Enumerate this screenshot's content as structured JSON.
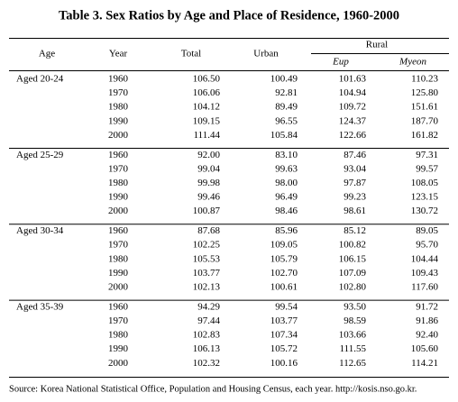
{
  "title": "Table 3. Sex Ratios by Age and Place of Residence, 1960-2000",
  "header": {
    "age": "Age",
    "year": "Year",
    "total": "Total",
    "urban": "Urban",
    "rural": "Rural",
    "eup": "Eup",
    "myeon": "Myeon"
  },
  "table": {
    "groups": [
      {
        "label": "Aged 20-24",
        "rows": [
          [
            "1960",
            "106.50",
            "100.49",
            "101.63",
            "110.23"
          ],
          [
            "1970",
            "106.06",
            "92.81",
            "104.94",
            "125.80"
          ],
          [
            "1980",
            "104.12",
            "89.49",
            "109.72",
            "151.61"
          ],
          [
            "1990",
            "109.15",
            "96.55",
            "124.37",
            "187.70"
          ],
          [
            "2000",
            "111.44",
            "105.84",
            "122.66",
            "161.82"
          ]
        ]
      },
      {
        "label": "Aged 25-29",
        "rows": [
          [
            "1960",
            "92.00",
            "83.10",
            "87.46",
            "97.31"
          ],
          [
            "1970",
            "99.04",
            "99.63",
            "93.04",
            "99.57"
          ],
          [
            "1980",
            "99.98",
            "98.00",
            "97.87",
            "108.05"
          ],
          [
            "1990",
            "99.46",
            "96.49",
            "99.23",
            "123.15"
          ],
          [
            "2000",
            "100.87",
            "98.46",
            "98.61",
            "130.72"
          ]
        ]
      },
      {
        "label": "Aged 30-34",
        "rows": [
          [
            "1960",
            "87.68",
            "85.96",
            "85.12",
            "89.05"
          ],
          [
            "1970",
            "102.25",
            "109.05",
            "100.82",
            "95.70"
          ],
          [
            "1980",
            "105.53",
            "105.79",
            "106.15",
            "104.44"
          ],
          [
            "1990",
            "103.77",
            "102.70",
            "107.09",
            "109.43"
          ],
          [
            "2000",
            "102.13",
            "100.61",
            "102.80",
            "117.60"
          ]
        ]
      },
      {
        "label": "Aged 35-39",
        "rows": [
          [
            "1960",
            "94.29",
            "99.54",
            "93.50",
            "91.72"
          ],
          [
            "1970",
            "97.44",
            "103.77",
            "98.59",
            "91.86"
          ],
          [
            "1980",
            "102.83",
            "107.34",
            "103.66",
            "92.40"
          ],
          [
            "1990",
            "106.13",
            "105.72",
            "111.55",
            "105.60"
          ],
          [
            "2000",
            "102.32",
            "100.16",
            "112.65",
            "114.21"
          ]
        ]
      }
    ]
  },
  "source": "Source: Korea National Statistical Office, Population and Housing Census, each year. http://kosis.nso.go.kr."
}
